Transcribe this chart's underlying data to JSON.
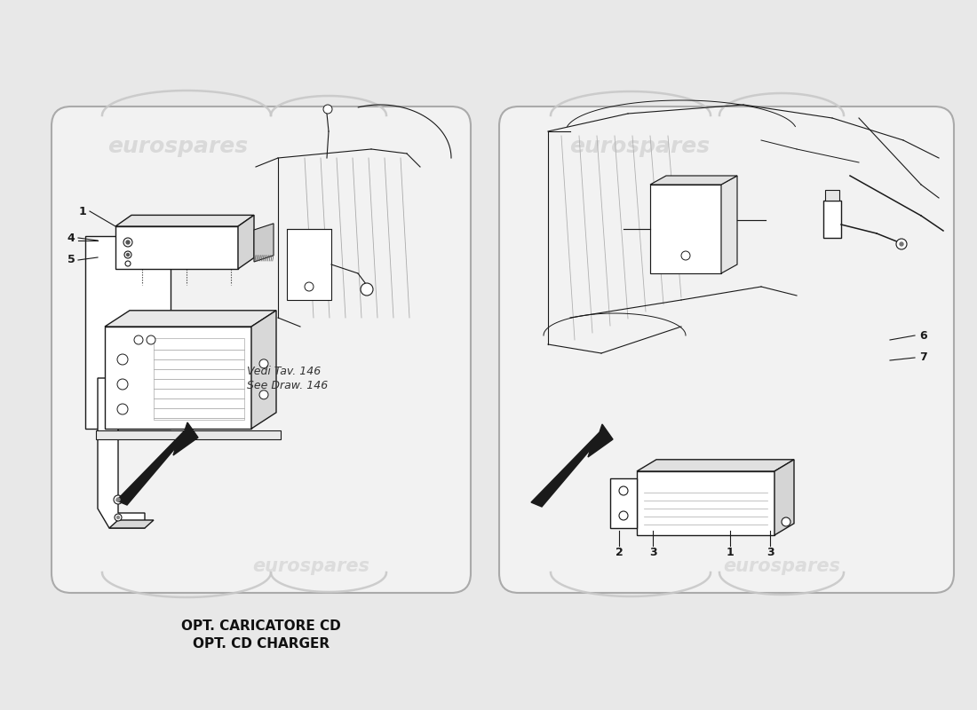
{
  "bg_color": "#e8e8e8",
  "panel_bg": "#f0f0f0",
  "panel_border": "#aaaaaa",
  "line_color": "#1a1a1a",
  "line_width": 1.0,
  "watermark_color": "#bbbbbb",
  "watermark_alpha": 0.55,
  "watermark_text": "eurospares",
  "left_caption_line1": "OPT. CARICATORE CD",
  "left_caption_line2": "OPT. CD CHARGER",
  "note_line1": "Vedi Tav. 146",
  "note_line2": "See Draw. 146"
}
